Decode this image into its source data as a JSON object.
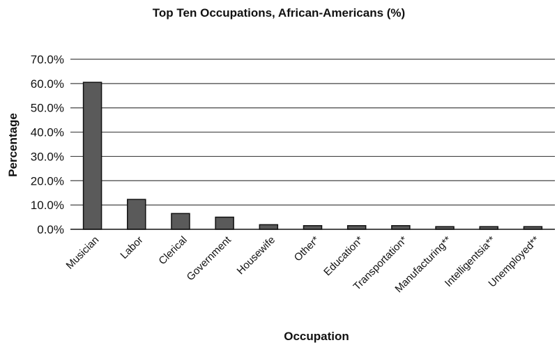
{
  "chart_data": {
    "type": "bar",
    "title": "Top Ten Occupations, African-Americans (%)",
    "xlabel": "Occupation",
    "ylabel": "Percentage",
    "categories": [
      "Musician",
      "Labor",
      "Clerical",
      "Government",
      "Housewife",
      "Other*",
      "Education*",
      "Transportation*",
      "Manufacturing**",
      "Intelligentsia**",
      "Unemployed**"
    ],
    "values": [
      60.5,
      12.3,
      6.5,
      5.0,
      1.9,
      1.5,
      1.5,
      1.5,
      1.1,
      1.1,
      1.1
    ],
    "ylim": [
      0,
      70
    ],
    "yticks": [
      "0.0%",
      "10.0%",
      "20.0%",
      "30.0%",
      "40.0%",
      "50.0%",
      "60.0%",
      "70.0%"
    ],
    "grid": true,
    "legend": "none",
    "colors": {
      "bar_fill": "#5a5a5a",
      "bar_stroke": "#111111",
      "grid": "#444444",
      "axis": "#111111"
    }
  }
}
